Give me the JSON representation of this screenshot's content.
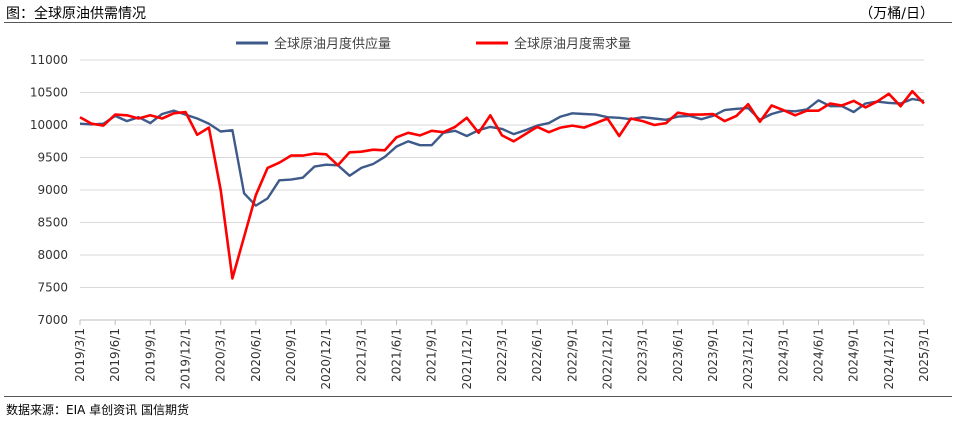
{
  "header": {
    "title": "图：全球原油供需情况",
    "unit": "（万桶/日）"
  },
  "footer": {
    "source": "数据来源：EIA 卓创资讯 国信期货"
  },
  "colors": {
    "supply": "#3D5A8A",
    "demand": "#FF0000",
    "grid": "#D9D9D9",
    "axis": "#BFBFBF"
  },
  "chart_data": {
    "type": "line",
    "title": "图：全球原油供需情况",
    "xlabel": "",
    "ylabel": "（万桶/日）",
    "ylim": [
      7000,
      11000
    ],
    "yticks": [
      7000,
      7500,
      8000,
      8500,
      9000,
      9500,
      10000,
      10500,
      11000
    ],
    "x": [
      "2019/3/1",
      "2019/4/1",
      "2019/5/1",
      "2019/6/1",
      "2019/7/1",
      "2019/8/1",
      "2019/9/1",
      "2019/10/1",
      "2019/11/1",
      "2019/12/1",
      "2020/1/1",
      "2020/2/1",
      "2020/3/1",
      "2020/4/1",
      "2020/5/1",
      "2020/6/1",
      "2020/7/1",
      "2020/8/1",
      "2020/9/1",
      "2020/10/1",
      "2020/11/1",
      "2020/12/1",
      "2021/1/1",
      "2021/2/1",
      "2021/3/1",
      "2021/4/1",
      "2021/5/1",
      "2021/6/1",
      "2021/7/1",
      "2021/8/1",
      "2021/9/1",
      "2021/10/1",
      "2021/11/1",
      "2021/12/1",
      "2022/1/1",
      "2022/2/1",
      "2022/3/1",
      "2022/4/1",
      "2022/5/1",
      "2022/6/1",
      "2022/7/1",
      "2022/8/1",
      "2022/9/1",
      "2022/10/1",
      "2022/11/1",
      "2022/12/1",
      "2023/1/1",
      "2023/2/1",
      "2023/3/1",
      "2023/4/1",
      "2023/5/1",
      "2023/6/1",
      "2023/7/1",
      "2023/8/1",
      "2023/9/1",
      "2023/10/1",
      "2023/11/1",
      "2023/12/1",
      "2024/1/1",
      "2024/2/1",
      "2024/3/1",
      "2024/4/1",
      "2024/5/1",
      "2024/6/1",
      "2024/7/1",
      "2024/8/1",
      "2024/9/1",
      "2024/10/1",
      "2024/11/1",
      "2024/12/1",
      "2025/1/1",
      "2025/2/1",
      "2025/3/1"
    ],
    "xtick_labels": [
      "2019/3/1",
      "2019/6/1",
      "2019/9/1",
      "2019/12/1",
      "2020/3/1",
      "2020/6/1",
      "2020/9/1",
      "2020/12/1",
      "2021/3/1",
      "2021/6/1",
      "2021/9/1",
      "2021/12/1",
      "2022/3/1",
      "2022/6/1",
      "2022/9/1",
      "2022/12/1",
      "2023/3/1",
      "2023/6/1",
      "2023/9/1",
      "2023/12/1",
      "2024/3/1",
      "2024/6/1",
      "2024/9/1",
      "2024/12/1",
      "2025/3/1"
    ],
    "series": [
      {
        "name": "全球原油月度供应量",
        "color": "#3D5A8A",
        "values": [
          10020,
          10010,
          10020,
          10140,
          10060,
          10120,
          10030,
          10170,
          10220,
          10160,
          10100,
          10020,
          9900,
          9920,
          8950,
          8760,
          8870,
          9150,
          9160,
          9190,
          9360,
          9390,
          9380,
          9220,
          9340,
          9400,
          9510,
          9670,
          9750,
          9690,
          9690,
          9880,
          9910,
          9830,
          9920,
          9970,
          9940,
          9860,
          9920,
          9990,
          10030,
          10130,
          10180,
          10170,
          10160,
          10120,
          10110,
          10090,
          10120,
          10100,
          10080,
          10130,
          10140,
          10090,
          10140,
          10230,
          10250,
          10260,
          10080,
          10170,
          10220,
          10210,
          10240,
          10380,
          10290,
          10290,
          10200,
          10330,
          10360,
          10340,
          10330,
          10400,
          10370
        ]
      },
      {
        "name": "全球原油月度需求量",
        "color": "#FF0000",
        "values": [
          10120,
          10020,
          9990,
          10160,
          10150,
          10100,
          10150,
          10100,
          10180,
          10200,
          9850,
          9960,
          9000,
          7640,
          8280,
          8920,
          9340,
          9420,
          9530,
          9530,
          9560,
          9550,
          9380,
          9580,
          9590,
          9620,
          9610,
          9810,
          9880,
          9840,
          9910,
          9890,
          9970,
          10110,
          9880,
          10150,
          9840,
          9750,
          9860,
          9970,
          9890,
          9960,
          9990,
          9960,
          10030,
          10100,
          9830,
          10100,
          10060,
          10000,
          10030,
          10190,
          10160,
          10160,
          10170,
          10060,
          10140,
          10320,
          10050,
          10300,
          10230,
          10150,
          10220,
          10220,
          10330,
          10300,
          10370,
          10270,
          10360,
          10480,
          10290,
          10520,
          10330
        ]
      }
    ],
    "legend_position": "top-center",
    "grid": true
  }
}
